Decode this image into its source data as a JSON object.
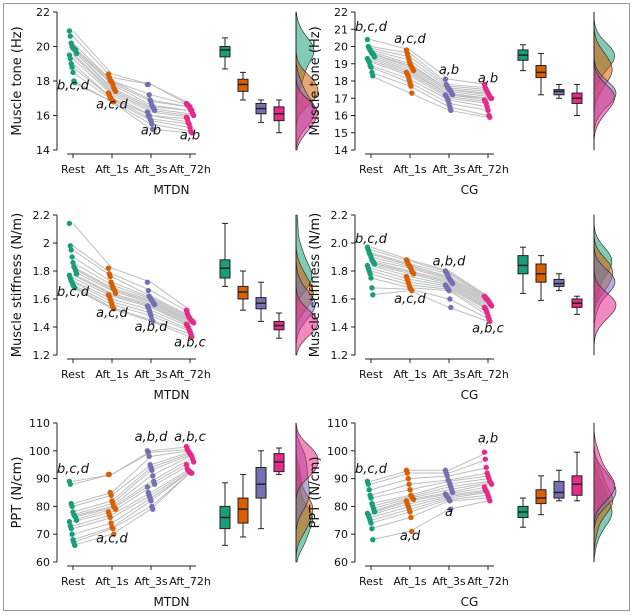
{
  "colors": {
    "rest": "#1a9e77",
    "aft1": "#d95f02",
    "aft3": "#7570b3",
    "aft72": "#e7298a",
    "line": "#bdbdbd",
    "axis": "#222222"
  },
  "chart_data": [
    {
      "type": "scatter",
      "group": "MTDN",
      "xlabel": "MTDN",
      "ylabel": "Muscle tone (Hz)",
      "categories": [
        "Rest",
        "Aft_1s",
        "Aft_3s",
        "Aft_72h"
      ],
      "ylim": [
        14,
        22
      ],
      "yticks": [
        "14",
        "16",
        "18",
        "20",
        "22"
      ],
      "series": [
        {
          "values": [
            20.9,
            20.6,
            20.2,
            20.0,
            19.9,
            19.9,
            19.8,
            19.8,
            19.6,
            19.5,
            19.3,
            19.0,
            18.8,
            18.5,
            18.0,
            17.9
          ]
        },
        {
          "values": [
            18.4,
            18.2,
            18.0,
            18.0,
            17.9,
            17.8,
            17.6,
            17.5,
            17.4,
            17.3,
            17.2,
            17.0,
            17.0,
            16.9,
            16.8,
            16.8
          ]
        },
        {
          "values": [
            17.8,
            17.8,
            17.2,
            16.9,
            16.8,
            16.6,
            16.5,
            16.4,
            16.3,
            16.2,
            16.0,
            16.0,
            15.8,
            15.7,
            15.5,
            15.2
          ]
        },
        {
          "values": [
            16.7,
            16.6,
            16.6,
            16.5,
            16.5,
            16.3,
            16.3,
            16.1,
            16.0,
            15.9,
            15.8,
            15.6,
            15.5,
            15.3,
            15.1,
            15.0
          ]
        }
      ],
      "box": [
        {
          "q1": 19.4,
          "median": 19.8,
          "q3": 20.0,
          "whisker_low": 18.7,
          "whisker_high": 20.5
        },
        {
          "q1": 17.4,
          "median": 17.8,
          "q3": 18.1,
          "whisker_low": 16.9,
          "whisker_high": 18.5
        },
        {
          "q1": 16.1,
          "median": 16.4,
          "q3": 16.7,
          "whisker_low": 15.6,
          "whisker_high": 16.9
        },
        {
          "q1": 15.7,
          "median": 16.1,
          "q3": 16.5,
          "whisker_low": 15.0,
          "whisker_high": 16.9
        }
      ],
      "annotations": [
        {
          "text": "b,c,d",
          "x": "Rest",
          "y": 17.5
        },
        {
          "text": "a,c,d",
          "x": "Aft_1s",
          "y": 16.4
        },
        {
          "text": "a,b",
          "x": "Aft_3s",
          "y": 14.9
        },
        {
          "text": "a,b",
          "x": "Aft_72h",
          "y": 14.6
        }
      ]
    },
    {
      "type": "scatter",
      "group": "CG",
      "xlabel": "CG",
      "ylabel": "Muscle tone (Hz)",
      "categories": [
        "Rest",
        "Aft_1s",
        "Aft_3s",
        "Aft_72h"
      ],
      "ylim": [
        14,
        22
      ],
      "yticks": [
        "14",
        "15",
        "16",
        "17",
        "18",
        "19",
        "20",
        "21",
        "22"
      ],
      "series": [
        {
          "values": [
            20.4,
            20.0,
            19.9,
            19.8,
            19.7,
            19.6,
            19.6,
            19.5,
            19.4,
            19.3,
            19.2,
            19.1,
            18.9,
            18.8,
            18.5,
            18.3
          ]
        },
        {
          "values": [
            19.8,
            19.6,
            19.4,
            19.2,
            19.0,
            18.9,
            18.8,
            18.7,
            18.6,
            18.5,
            18.4,
            18.3,
            18.1,
            17.9,
            17.7,
            17.3
          ]
        },
        {
          "values": [
            18.1,
            17.8,
            17.7,
            17.6,
            17.5,
            17.5,
            17.4,
            17.3,
            17.2,
            17.2,
            17.1,
            17.0,
            16.9,
            16.7,
            16.5,
            16.3
          ]
        },
        {
          "values": [
            17.8,
            17.6,
            17.5,
            17.4,
            17.3,
            17.2,
            17.1,
            17.0,
            17.0,
            16.9,
            16.8,
            16.7,
            16.5,
            16.3,
            16.0,
            15.9
          ]
        }
      ],
      "box": [
        {
          "q1": 19.2,
          "median": 19.5,
          "q3": 19.8,
          "whisker_low": 18.6,
          "whisker_high": 20.1
        },
        {
          "q1": 18.2,
          "median": 18.5,
          "q3": 18.9,
          "whisker_low": 17.2,
          "whisker_high": 19.6
        },
        {
          "q1": 17.2,
          "median": 17.4,
          "q3": 17.5,
          "whisker_low": 17.0,
          "whisker_high": 17.8
        },
        {
          "q1": 16.7,
          "median": 17.0,
          "q3": 17.3,
          "whisker_low": 16.0,
          "whisker_high": 17.8
        }
      ],
      "annotations": [
        {
          "text": "b,c,d",
          "x": "Rest",
          "y": 20.9
        },
        {
          "text": "a,c,d",
          "x": "Aft_1s",
          "y": 20.2
        },
        {
          "text": "a,b",
          "x": "Aft_3s",
          "y": 18.4
        },
        {
          "text": "a,b",
          "x": "Aft_72h",
          "y": 17.9
        }
      ]
    },
    {
      "type": "scatter",
      "group": "MTDN",
      "xlabel": "MTDN",
      "ylabel": "Muscle stiffness (N/m)",
      "categories": [
        "Rest",
        "Aft_1s",
        "Aft_3s",
        "Aft_72h"
      ],
      "ylim": [
        1.2,
        2.2
      ],
      "yticks": [
        "1.2",
        "1.4",
        "1.6",
        "1.8",
        "2",
        "2.2"
      ],
      "series": [
        {
          "values": [
            2.14,
            1.98,
            1.95,
            1.9,
            1.86,
            1.83,
            1.82,
            1.8,
            1.78,
            1.77,
            1.75,
            1.73,
            1.72,
            1.7,
            1.69,
            1.68
          ]
        },
        {
          "values": [
            1.82,
            1.78,
            1.76,
            1.72,
            1.7,
            1.68,
            1.67,
            1.66,
            1.64,
            1.63,
            1.62,
            1.6,
            1.58,
            1.56,
            1.54,
            1.53
          ]
        },
        {
          "values": [
            1.72,
            1.66,
            1.62,
            1.61,
            1.6,
            1.59,
            1.58,
            1.57,
            1.56,
            1.55,
            1.54,
            1.52,
            1.5,
            1.48,
            1.45,
            1.44
          ]
        },
        {
          "values": [
            1.52,
            1.5,
            1.48,
            1.47,
            1.46,
            1.45,
            1.44,
            1.44,
            1.43,
            1.42,
            1.41,
            1.4,
            1.38,
            1.37,
            1.35,
            1.33
          ]
        }
      ],
      "box": [
        {
          "q1": 1.75,
          "median": 1.82,
          "q3": 1.88,
          "whisker_low": 1.69,
          "whisker_high": 2.14
        },
        {
          "q1": 1.6,
          "median": 1.65,
          "q3": 1.69,
          "whisker_low": 1.52,
          "whisker_high": 1.8
        },
        {
          "q1": 1.53,
          "median": 1.57,
          "q3": 1.61,
          "whisker_low": 1.44,
          "whisker_high": 1.72
        },
        {
          "q1": 1.38,
          "median": 1.41,
          "q3": 1.44,
          "whisker_low": 1.32,
          "whisker_high": 1.5
        }
      ],
      "annotations": [
        {
          "text": "b,c,d",
          "x": "Rest",
          "y": 1.62
        },
        {
          "text": "a,c,d",
          "x": "Aft_1s",
          "y": 1.47
        },
        {
          "text": "a,b,d",
          "x": "Aft_3s",
          "y": 1.37
        },
        {
          "text": "a,b,c",
          "x": "Aft_72h",
          "y": 1.26
        }
      ]
    },
    {
      "type": "scatter",
      "group": "CG",
      "xlabel": "CG",
      "ylabel": "Muscle stiffness (N/m)",
      "categories": [
        "Rest",
        "Aft_1s",
        "Aft_3s",
        "Aft_72h"
      ],
      "ylim": [
        1.2,
        2.2
      ],
      "yticks": [
        "1.2",
        "1.4",
        "1.6",
        "1.8",
        "2.0",
        "2.2"
      ],
      "series": [
        {
          "values": [
            1.97,
            1.95,
            1.93,
            1.92,
            1.9,
            1.88,
            1.87,
            1.86,
            1.85,
            1.84,
            1.82,
            1.8,
            1.78,
            1.75,
            1.68,
            1.63
          ]
        },
        {
          "values": [
            1.88,
            1.87,
            1.85,
            1.84,
            1.83,
            1.82,
            1.8,
            1.79,
            1.78,
            1.76,
            1.74,
            1.72,
            1.7,
            1.68,
            1.67,
            1.66
          ]
        },
        {
          "values": [
            1.8,
            1.79,
            1.78,
            1.76,
            1.75,
            1.74,
            1.73,
            1.72,
            1.71,
            1.7,
            1.69,
            1.68,
            1.67,
            1.66,
            1.6,
            1.54
          ]
        },
        {
          "values": [
            1.62,
            1.61,
            1.6,
            1.6,
            1.59,
            1.58,
            1.57,
            1.56,
            1.55,
            1.54,
            1.53,
            1.52,
            1.5,
            1.48,
            1.46,
            1.44
          ]
        }
      ],
      "box": [
        {
          "q1": 1.78,
          "median": 1.84,
          "q3": 1.91,
          "whisker_low": 1.64,
          "whisker_high": 1.97
        },
        {
          "q1": 1.72,
          "median": 1.78,
          "q3": 1.85,
          "whisker_low": 1.59,
          "whisker_high": 1.91
        },
        {
          "q1": 1.69,
          "median": 1.71,
          "q3": 1.74,
          "whisker_low": 1.66,
          "whisker_high": 1.78
        },
        {
          "q1": 1.54,
          "median": 1.57,
          "q3": 1.6,
          "whisker_low": 1.49,
          "whisker_high": 1.62
        }
      ],
      "annotations": [
        {
          "text": "b,c,d",
          "x": "Rest",
          "y": 2.0
        },
        {
          "text": "a,c,d",
          "x": "Aft_1s",
          "y": 1.57
        },
        {
          "text": "a,b,d",
          "x": "Aft_3s",
          "y": 1.84
        },
        {
          "text": "a,b,c",
          "x": "Aft_72h",
          "y": 1.36
        }
      ]
    },
    {
      "type": "scatter",
      "group": "MTDN",
      "xlabel": "MTDN",
      "ylabel": "PPT (N/cm)",
      "categories": [
        "Rest",
        "Aft_1s",
        "Aft_3s",
        "Aft_72h"
      ],
      "ylim": [
        60,
        110
      ],
      "yticks": [
        "60",
        "70",
        "80",
        "90",
        "100",
        "110"
      ],
      "series": [
        {
          "values": [
            89.0,
            88.0,
            81.0,
            80.0,
            78.0,
            77.0,
            76.5,
            76.0,
            75.0,
            74.5,
            73.0,
            72.0,
            70.0,
            68.0,
            67.0,
            66.0
          ]
        },
        {
          "values": [
            91.5,
            91.5,
            85.0,
            84.0,
            82.0,
            81.0,
            80.0,
            79.5,
            79.0,
            78.0,
            77.0,
            76.0,
            74.0,
            72.5,
            72.0,
            70.0
          ]
        },
        {
          "values": [
            100.0,
            99.5,
            98.0,
            95.0,
            94.0,
            93.0,
            91.0,
            89.0,
            88.0,
            87.0,
            85.0,
            84.0,
            83.0,
            82.0,
            80.0,
            79.0
          ]
        },
        {
          "values": [
            101.5,
            100.5,
            100.0,
            99.5,
            99.0,
            98.5,
            98.0,
            97.0,
            96.0,
            95.0,
            93.5,
            93.0,
            92.5,
            92.5,
            92.0,
            92.0
          ]
        }
      ],
      "box": [
        {
          "q1": 72.0,
          "median": 76.0,
          "q3": 80.0,
          "whisker_low": 66.0,
          "whisker_high": 88.5
        },
        {
          "q1": 74.0,
          "median": 79.0,
          "q3": 83.0,
          "whisker_low": 69.0,
          "whisker_high": 91.5
        },
        {
          "q1": 83.0,
          "median": 88.0,
          "q3": 94.0,
          "whisker_low": 72.0,
          "whisker_high": 100.0
        },
        {
          "q1": 92.5,
          "median": 96.0,
          "q3": 99.0,
          "whisker_low": 91.5,
          "whisker_high": 101.0
        }
      ],
      "annotations": [
        {
          "text": "b,c,d",
          "x": "Rest",
          "y": 92.0
        },
        {
          "text": "a,c,d",
          "x": "Aft_1s",
          "y": 67.0
        },
        {
          "text": "a,b,d",
          "x": "Aft_3s",
          "y": 103.5
        },
        {
          "text": "a,b,c",
          "x": "Aft_72h",
          "y": 103.5
        }
      ]
    },
    {
      "type": "scatter",
      "group": "CG",
      "xlabel": "CG",
      "ylabel": "PPT (N/cm)",
      "categories": [
        "Rest",
        "Aft_1s",
        "Aft_3s",
        "Aft_72h"
      ],
      "ylim": [
        60,
        110
      ],
      "yticks": [
        "60",
        "70",
        "80",
        "90",
        "100",
        "110"
      ],
      "series": [
        {
          "values": [
            89.0,
            88.0,
            86.0,
            84.0,
            83.0,
            81.0,
            80.0,
            79.0,
            78.0,
            77.5,
            77.0,
            76.0,
            75.0,
            74.0,
            72.0,
            68.0
          ]
        },
        {
          "values": [
            93.0,
            92.0,
            90.0,
            88.0,
            86.0,
            84.0,
            83.5,
            83.0,
            82.5,
            82.0,
            81.0,
            80.0,
            79.0,
            78.0,
            76.0,
            71.0
          ]
        },
        {
          "values": [
            93.0,
            92.0,
            91.0,
            89.5,
            89.0,
            88.0,
            87.0,
            86.0,
            85.0,
            84.5,
            84.0,
            83.5,
            83.0,
            82.5,
            82.0,
            79.0
          ]
        },
        {
          "values": [
            99.5,
            97.0,
            94.0,
            92.0,
            91.0,
            90.0,
            89.0,
            88.5,
            88.0,
            87.0,
            86.0,
            85.5,
            85.0,
            84.0,
            83.0,
            82.0
          ]
        }
      ],
      "box": [
        {
          "q1": 76.0,
          "median": 78.0,
          "q3": 80.0,
          "whisker_low": 72.5,
          "whisker_high": 83.0
        },
        {
          "q1": 81.0,
          "median": 83.0,
          "q3": 86.0,
          "whisker_low": 77.0,
          "whisker_high": 91.0
        },
        {
          "q1": 83.0,
          "median": 85.0,
          "q3": 89.0,
          "whisker_low": 82.0,
          "whisker_high": 93.0
        },
        {
          "q1": 84.0,
          "median": 88.0,
          "q3": 91.0,
          "whisker_low": 82.0,
          "whisker_high": 99.5
        }
      ],
      "annotations": [
        {
          "text": "b,c,d",
          "x": "Rest",
          "y": 92.0
        },
        {
          "text": "a,d",
          "x": "Aft_1s",
          "y": 68.0
        },
        {
          "text": "a",
          "x": "Aft_3s",
          "y": 76.5
        },
        {
          "text": "a,b",
          "x": "Aft_72h",
          "y": 103.0
        }
      ]
    }
  ]
}
